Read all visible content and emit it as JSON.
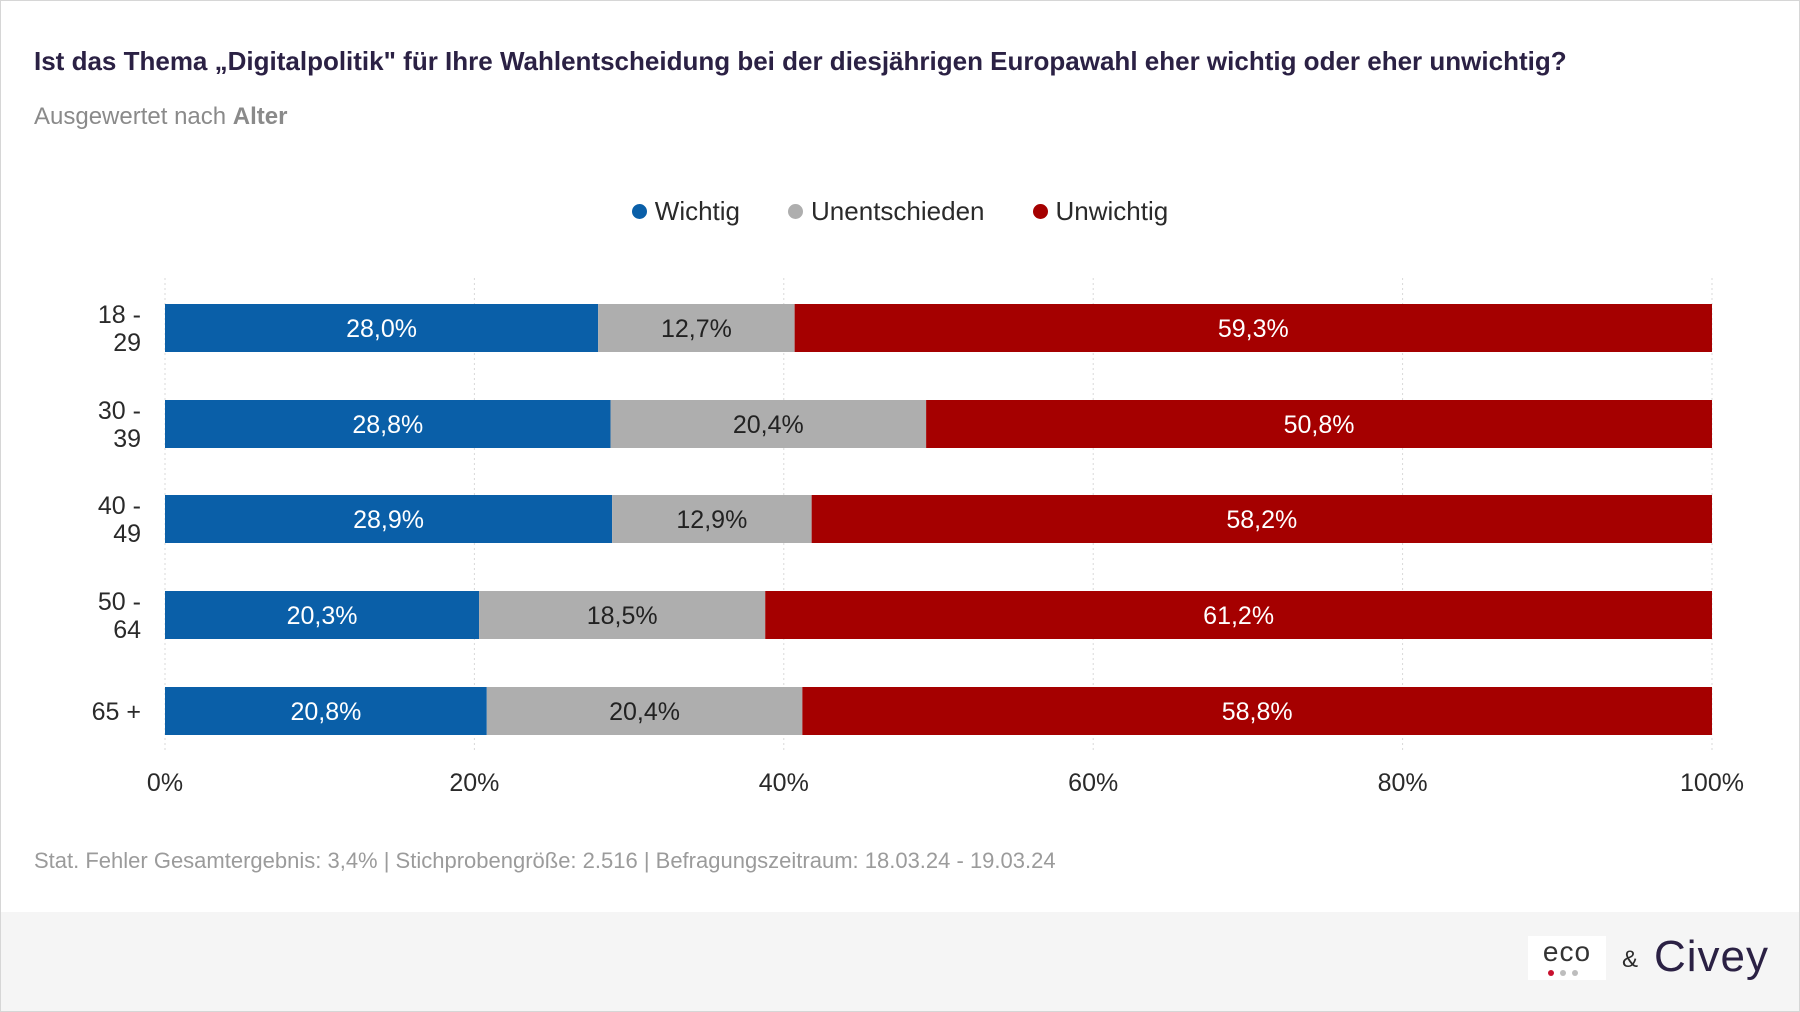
{
  "title": "Ist das Thema „Digitalpolitik\" für Ihre Wahlentscheidung bei der diesjährigen Europawahl eher wichtig oder eher unwichtig?",
  "subtitle_prefix": "Ausgewertet nach",
  "subtitle_bold": "Alter",
  "footnote": "Stat. Fehler Gesamtergebnis: 3,4% | Stichprobengröße: 2.516 | Befragungszeitraum: 18.03.24 - 19.03.24",
  "logos": {
    "eco": "eco",
    "ampersand": "&",
    "civey": "Civey"
  },
  "chart_data": {
    "type": "bar",
    "orientation": "horizontal",
    "stacked": true,
    "percent_stacked": true,
    "legend_position": "top-center",
    "grid": "vertical dotted",
    "categories": [
      [
        "18 -",
        "29"
      ],
      [
        "30 -",
        "39"
      ],
      [
        "40 -",
        "49"
      ],
      [
        "50 -",
        "64"
      ],
      [
        "65 +"
      ]
    ],
    "series": [
      {
        "name": "Wichtig",
        "color": "#0a5fa8",
        "label_color": "#ffffff",
        "values": [
          28.0,
          28.8,
          28.9,
          20.3,
          20.8
        ],
        "labels": [
          "28,0%",
          "28,8%",
          "28,9%",
          "20,3%",
          "20,8%"
        ]
      },
      {
        "name": "Unentschieden",
        "color": "#aeaeae",
        "label_color": "#222222",
        "values": [
          12.7,
          20.4,
          12.9,
          18.5,
          20.4
        ],
        "labels": [
          "12,7%",
          "20,4%",
          "12,9%",
          "18,5%",
          "20,4%"
        ]
      },
      {
        "name": "Unwichtig",
        "color": "#a50000",
        "label_color": "#ffffff",
        "values": [
          59.3,
          50.8,
          58.2,
          61.2,
          58.8
        ],
        "labels": [
          "59,3%",
          "50,8%",
          "58,2%",
          "61,2%",
          "58,8%"
        ]
      }
    ],
    "xlim": [
      0,
      100
    ],
    "x_ticks": [
      0,
      20,
      40,
      60,
      80,
      100
    ],
    "x_tick_labels": [
      "0%",
      "20%",
      "40%",
      "60%",
      "80%",
      "100%"
    ]
  }
}
